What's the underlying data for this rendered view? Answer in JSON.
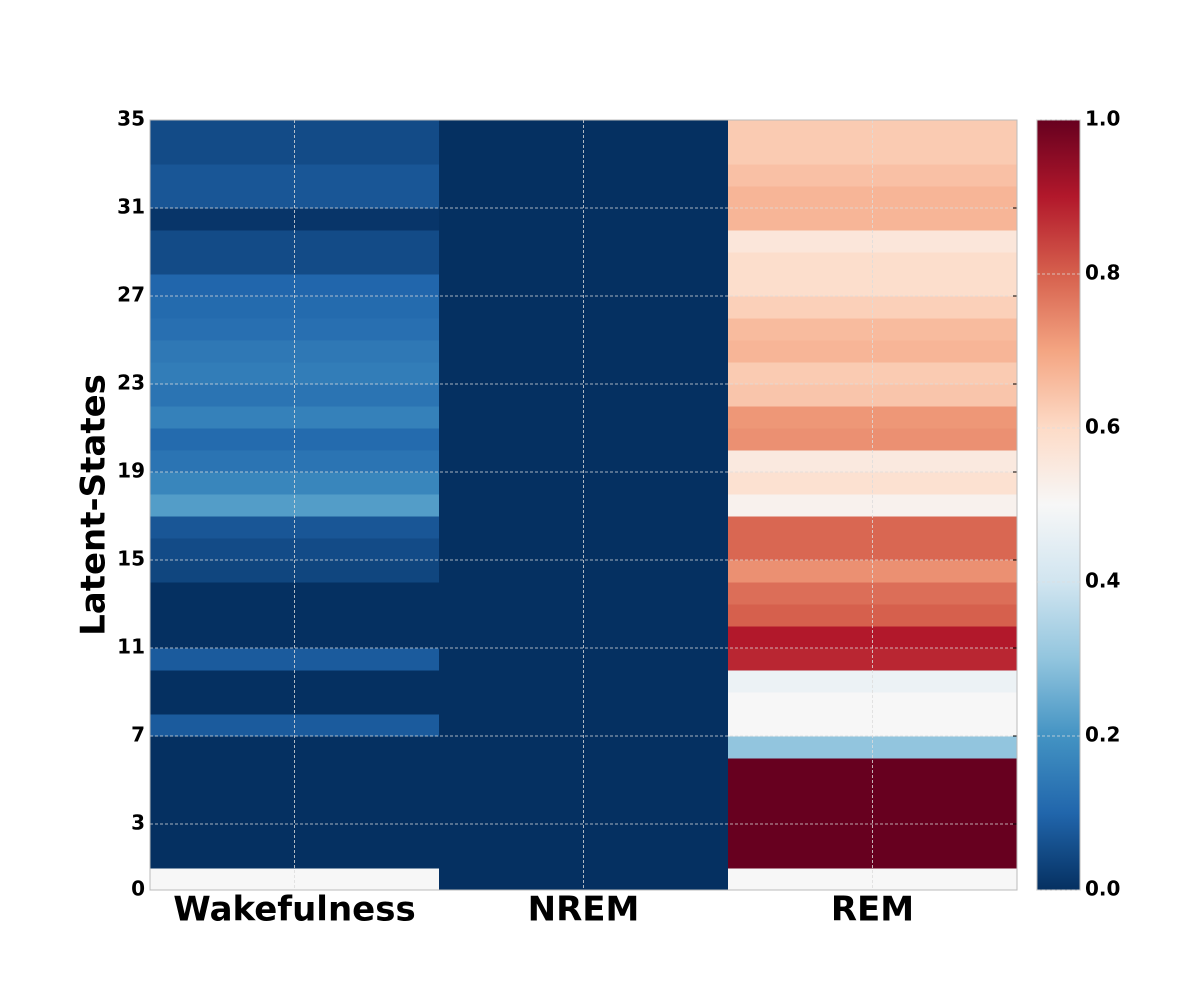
{
  "chart_data": {
    "type": "heatmap",
    "y_label": "Latent-States",
    "categories": [
      "Wakefulness",
      "NREM",
      "REM"
    ],
    "values": [
      [
        0.5,
        0,
        0,
        0,
        0,
        0,
        0,
        0.08,
        0,
        0,
        0.08,
        0,
        0,
        0,
        0.04,
        0.05,
        0.07,
        0.22,
        0.17,
        0.13,
        0.11,
        0.16,
        0.13,
        0.15,
        0.14,
        0.12,
        0.11,
        0.1,
        0.05,
        0.05,
        0.01,
        0.07,
        0.07,
        0.05,
        0.05
      ],
      [
        0,
        0,
        0,
        0,
        0,
        0,
        0,
        0,
        0,
        0,
        0,
        0,
        0,
        0,
        0,
        0,
        0,
        0,
        0,
        0,
        0,
        0,
        0,
        0,
        0,
        0,
        0,
        0,
        0,
        0,
        0,
        0,
        0,
        0,
        0
      ],
      [
        0.5,
        1,
        1,
        1,
        1,
        1,
        0.3,
        0.5,
        0.5,
        0.47,
        0.88,
        0.9,
        0.8,
        0.78,
        0.73,
        0.79,
        0.79,
        0.52,
        0.58,
        0.55,
        0.73,
        0.72,
        0.64,
        0.63,
        0.67,
        0.66,
        0.62,
        0.59,
        0.59,
        0.56,
        0.67,
        0.67,
        0.65,
        0.63,
        0.63
      ]
    ],
    "ylim": [
      0,
      35
    ],
    "yticks": [
      0,
      3,
      7,
      11,
      15,
      19,
      23,
      27,
      31,
      35
    ],
    "clim": [
      0,
      1
    ],
    "cticks": [
      {
        "value": 0,
        "label": "0.0"
      },
      {
        "value": 0.2,
        "label": "0.2"
      },
      {
        "value": 0.4,
        "label": "0.4"
      },
      {
        "value": 0.6,
        "label": "0.6"
      },
      {
        "value": 0.8,
        "label": "0.8"
      },
      {
        "value": 1,
        "label": "1.0"
      }
    ],
    "colormap": "RdBu_r",
    "grid": true
  }
}
